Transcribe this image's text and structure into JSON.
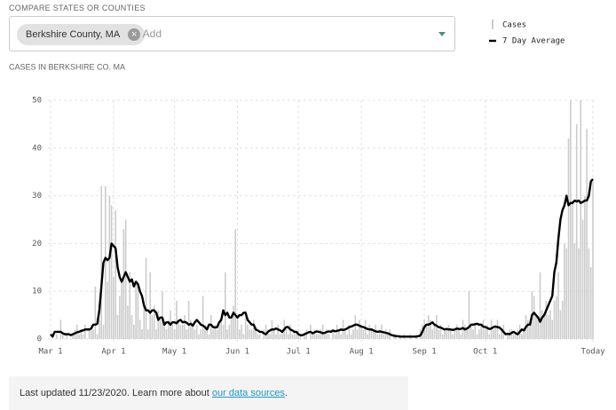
{
  "header": {
    "compare_label": "COMPARE STATES OR COUNTIES",
    "chip": "Berkshire County, MA",
    "add": "+ Add"
  },
  "chart_data": {
    "type": "bar",
    "title": "CASES IN BERKSHIRE CO. MA",
    "categories": [
      "Mar 1",
      null,
      null,
      null,
      null,
      null,
      null,
      null,
      null,
      null,
      null,
      null,
      null,
      null,
      null,
      null,
      null,
      null,
      null,
      null,
      null,
      null,
      null,
      null,
      null,
      null,
      null,
      null,
      null,
      null,
      null,
      "Apr 1",
      null,
      null,
      null,
      null,
      null,
      null,
      null,
      null,
      null,
      null,
      null,
      null,
      null,
      null,
      null,
      null,
      null,
      null,
      null,
      null,
      null,
      null,
      null,
      null,
      null,
      null,
      null,
      null,
      null,
      "May 1",
      null,
      null,
      null,
      null,
      null,
      null,
      null,
      null,
      null,
      null,
      null,
      null,
      null,
      null,
      null,
      null,
      null,
      null,
      null,
      null,
      null,
      null,
      null,
      null,
      null,
      null,
      null,
      null,
      null,
      null,
      "Jun 1",
      null,
      null,
      null,
      null,
      null,
      null,
      null,
      null,
      null,
      null,
      null,
      null,
      null,
      null,
      null,
      null,
      null,
      null,
      null,
      null,
      null,
      null,
      null,
      null,
      null,
      null,
      null,
      null,
      null,
      "Jul 1",
      null,
      null,
      null,
      null,
      null,
      null,
      null,
      null,
      null,
      null,
      null,
      null,
      null,
      null,
      null,
      null,
      null,
      null,
      null,
      null,
      null,
      null,
      null,
      null,
      null,
      null,
      null,
      null,
      null,
      null,
      "Aug 1",
      null,
      null,
      null,
      null,
      null,
      null,
      null,
      null,
      null,
      null,
      null,
      null,
      null,
      null,
      null,
      null,
      null,
      null,
      null,
      null,
      null,
      null,
      null,
      null,
      null,
      null,
      null,
      null,
      null,
      null,
      "Sep 1",
      null,
      null,
      null,
      null,
      null,
      null,
      null,
      null,
      null,
      null,
      null,
      null,
      null,
      null,
      null,
      null,
      null,
      null,
      null,
      null,
      null,
      null,
      null,
      null,
      null,
      null,
      null,
      null,
      null,
      "Oct 1",
      null,
      null,
      null,
      null,
      null,
      null,
      null,
      null,
      null,
      null,
      null,
      null,
      null,
      null,
      null,
      null,
      null,
      null,
      null,
      null,
      null,
      null,
      null,
      null,
      null,
      null,
      null,
      null,
      null,
      null,
      null,
      null,
      null,
      null,
      null,
      null,
      null,
      null,
      null,
      null,
      null,
      null,
      null,
      null,
      null,
      null,
      null,
      null,
      null,
      null,
      null,
      null,
      "Today"
    ],
    "series": [
      {
        "name": "Cases",
        "type": "bar",
        "color": "#cccccc",
        "values": [
          0,
          0,
          0,
          1,
          0,
          4,
          1,
          0,
          1,
          0,
          0,
          1,
          2,
          3,
          1,
          2,
          1,
          3,
          0,
          2,
          3,
          2,
          11,
          1,
          4,
          32,
          3,
          32,
          12,
          30,
          28,
          13,
          27,
          5,
          9,
          12,
          23,
          25,
          7,
          14,
          5,
          3,
          12,
          11,
          4,
          2,
          7,
          17,
          2,
          14,
          5,
          7,
          2,
          6,
          4,
          10,
          3,
          2,
          4,
          6,
          3,
          2,
          8,
          4,
          3,
          3,
          5,
          2,
          8,
          4,
          3,
          2,
          3,
          1,
          2,
          9,
          3,
          2,
          1,
          5,
          2,
          3,
          2,
          3,
          4,
          3,
          14,
          2,
          3,
          5,
          7,
          23,
          5,
          2,
          3,
          1,
          6,
          3,
          2,
          2,
          4,
          2,
          1,
          1,
          0,
          2,
          3,
          2,
          1,
          4,
          2,
          1,
          3,
          1,
          2,
          4,
          2,
          1,
          3,
          1,
          2,
          1,
          2,
          1,
          0,
          1,
          2,
          0,
          3,
          1,
          2,
          1,
          1,
          2,
          3,
          1,
          2,
          1,
          0,
          2,
          1,
          3,
          2,
          1,
          4,
          2,
          1,
          3,
          1,
          2,
          5,
          2,
          4,
          3,
          2,
          4,
          1,
          3,
          2,
          2,
          3,
          1,
          2,
          3,
          1,
          2,
          1,
          2,
          0,
          1,
          1,
          0,
          1,
          0,
          1,
          0,
          0,
          1,
          0,
          0,
          1,
          0,
          2,
          3,
          4,
          3,
          5,
          4,
          2,
          3,
          5,
          2,
          3,
          1,
          2,
          2,
          3,
          2,
          1,
          2,
          3,
          2,
          1,
          4,
          3,
          2,
          10,
          3,
          2,
          3,
          1,
          2,
          3,
          4,
          2,
          3,
          1,
          4,
          2,
          3,
          4,
          1,
          2,
          3,
          0,
          1,
          2,
          2,
          1,
          1,
          2,
          3,
          1,
          2,
          5,
          4,
          3,
          10,
          9,
          5,
          4,
          14,
          6,
          5,
          8,
          5,
          6,
          4,
          8,
          9,
          14,
          6,
          8,
          20,
          19,
          42,
          50,
          29,
          20,
          45,
          19,
          50,
          25,
          30,
          44,
          19,
          15,
          33
        ]
      },
      {
        "name": "7 Day Average",
        "type": "line",
        "color": "#000000",
        "values": [
          1,
          0.5,
          1.5,
          1.5,
          1.5,
          1.5,
          1.2,
          1,
          1,
          1,
          0.8,
          1,
          1.2,
          1.4,
          1.5,
          1.7,
          1.8,
          2,
          2,
          2,
          2.2,
          3,
          3,
          3.2,
          6,
          11,
          16,
          17,
          16.5,
          17,
          20,
          19.5,
          19,
          15,
          13,
          12,
          13,
          14,
          13,
          12,
          12.5,
          11,
          12,
          11.5,
          10,
          9,
          7,
          6,
          6,
          5.5,
          6,
          6,
          5.5,
          4,
          4.5,
          4.5,
          3,
          3.5,
          3.5,
          3,
          3.5,
          3.5,
          3.3,
          3.8,
          4,
          3.5,
          3.6,
          3.4,
          3,
          3.2,
          2.8,
          3.5,
          4,
          3.5,
          3,
          2.8,
          2.5,
          2,
          3,
          3,
          2.5,
          2.4,
          2.5,
          3.5,
          4,
          6,
          5,
          5.5,
          4.5,
          4.5,
          5.5,
          5,
          4.5,
          5,
          5,
          5.5,
          5.5,
          4,
          3.5,
          3,
          3,
          2,
          1.8,
          1.5,
          1.5,
          1.2,
          1,
          1.5,
          1.8,
          2,
          2,
          2.2,
          2,
          1.8,
          1.5,
          2,
          2.5,
          2.5,
          2,
          1.8,
          1.5,
          1.5,
          1,
          0.8,
          0.8,
          1,
          1.2,
          1.4,
          1.5,
          1.2,
          1.4,
          1.6,
          1.5,
          1.4,
          1.2,
          1.3,
          1.5,
          1.6,
          1.5,
          1.8,
          1.6,
          1.7,
          1.8,
          2,
          1.9,
          2,
          2.2,
          2.5,
          2.6,
          2.8,
          3,
          3,
          2.8,
          2.6,
          2.5,
          2.3,
          2.1,
          2,
          2,
          1.8,
          1.6,
          1.5,
          1.6,
          1.5,
          1.4,
          1.3,
          1.2,
          1,
          0.8,
          0.7,
          0.6,
          0.6,
          0.5,
          0.5,
          0.5,
          0.5,
          0.5,
          0.5,
          0.5,
          0.5,
          0.5,
          0.6,
          0.7,
          1.5,
          2.5,
          3,
          3,
          3.2,
          3.5,
          3,
          2.8,
          2.5,
          2.4,
          2.2,
          2,
          2.1,
          2,
          2,
          1.9,
          2,
          2.2,
          2.1,
          2.1,
          2.3,
          2,
          2.2,
          2.5,
          3,
          3,
          3.1,
          3.2,
          3,
          3,
          2.6,
          2.5,
          2.3,
          2.1,
          2.2,
          2.5,
          2.6,
          2.5,
          2.4,
          2,
          1.5,
          1,
          1.1,
          1,
          1.3,
          1.5,
          1.2,
          1,
          1.5,
          2,
          1.8,
          2.5,
          3,
          3,
          5,
          5.5,
          5,
          4.5,
          3.6,
          4.5,
          5,
          6,
          7,
          8,
          9,
          14,
          16,
          21,
          25,
          27,
          28,
          30,
          28,
          28.5,
          28.5,
          29,
          28.8,
          29,
          28.5,
          28.7,
          29,
          29,
          30,
          33,
          33.5
        ]
      }
    ],
    "ylim": [
      0,
      50
    ],
    "yticks": [
      0,
      10,
      20,
      30,
      40,
      50
    ],
    "grid": true,
    "legend": "top-right"
  },
  "footer": {
    "text": "Last updated 11/23/2020. Learn more about ",
    "link": "our data sources",
    "end": "."
  }
}
